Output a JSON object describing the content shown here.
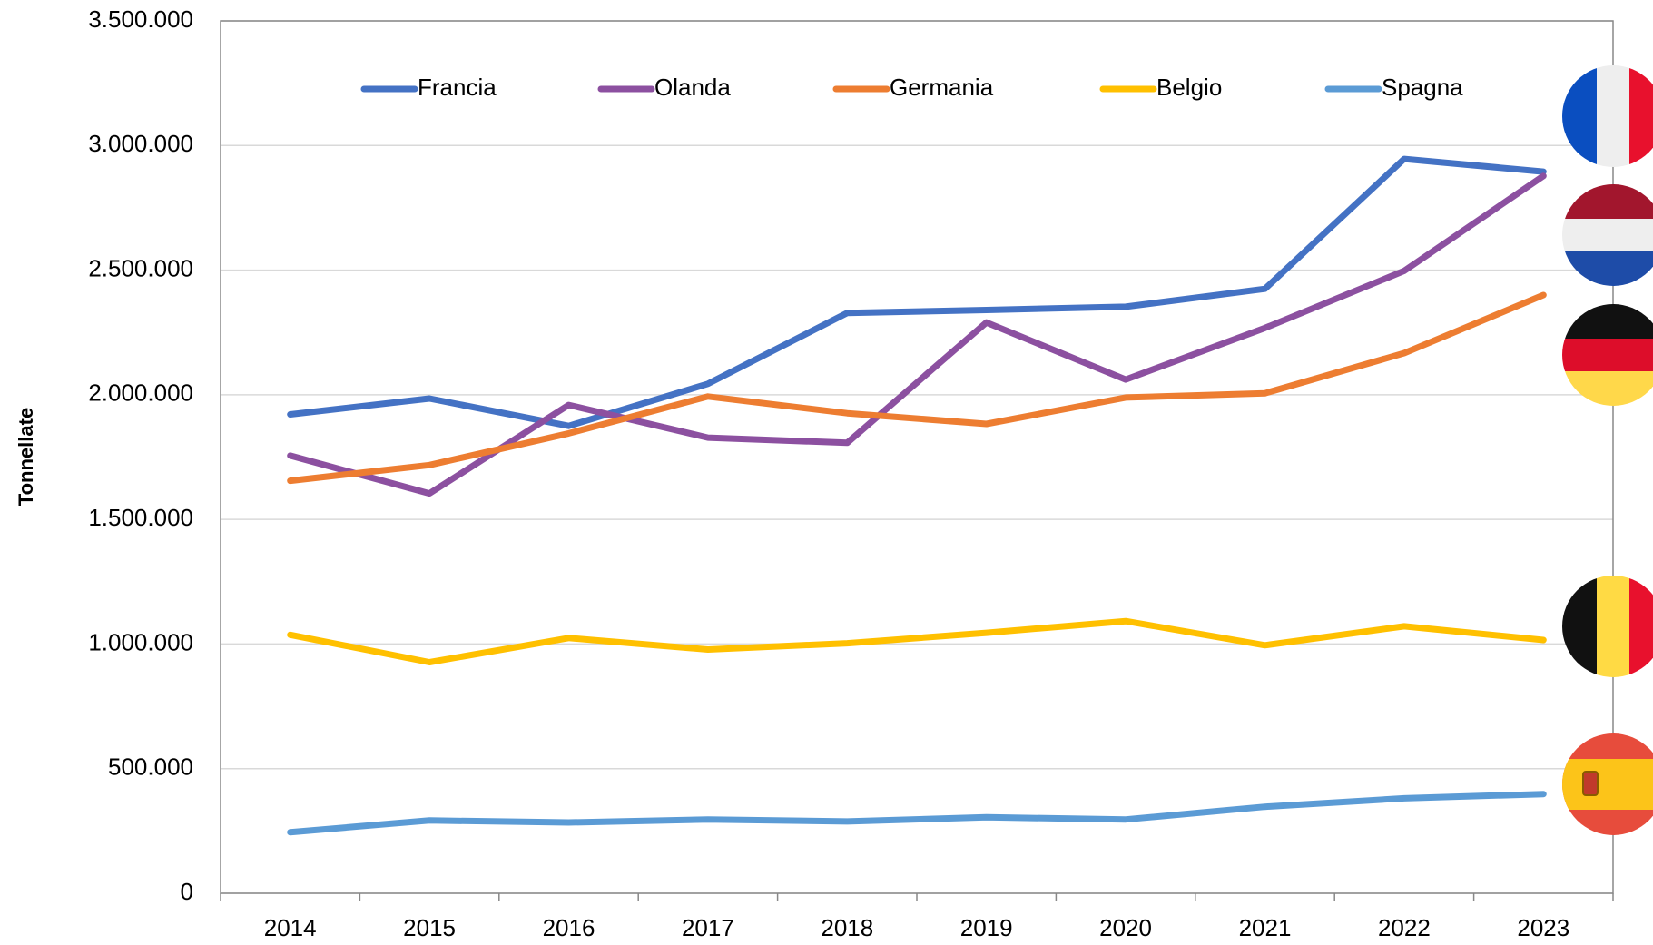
{
  "chart_data": {
    "type": "line",
    "ylabel": "Tonnellate",
    "categories": [
      "2014",
      "2015",
      "2016",
      "2017",
      "2018",
      "2019",
      "2020",
      "2021",
      "2022",
      "2023"
    ],
    "series": [
      {
        "name": "Francia",
        "color": "#4472c4",
        "values": [
          1921000,
          1985000,
          1875000,
          2044000,
          2328000,
          2340000,
          2353000,
          2425000,
          2946000,
          2895000
        ]
      },
      {
        "name": "Olanda",
        "color": "#8c50a0",
        "values": [
          1756000,
          1604000,
          1959000,
          1828000,
          1807000,
          2290000,
          2061000,
          2268000,
          2497000,
          2878000
        ]
      },
      {
        "name": "Germania",
        "color": "#ed7d31",
        "values": [
          1655000,
          1718000,
          1845000,
          1993000,
          1926000,
          1883000,
          1989000,
          2006000,
          2167000,
          2400000
        ]
      },
      {
        "name": "Belgio",
        "color": "#ffc000",
        "values": [
          1037000,
          927000,
          1024000,
          978000,
          1003000,
          1045000,
          1092000,
          995000,
          1071000,
          1016000
        ]
      },
      {
        "name": "Spagna",
        "color": "#5b9bd5",
        "values": [
          245000,
          292000,
          284000,
          296000,
          288000,
          305000,
          296000,
          347000,
          381000,
          398000
        ]
      }
    ],
    "ylim": [
      0,
      3500000
    ],
    "yticks": [
      0,
      {
        "value": 500000,
        "label": "500.000"
      },
      {
        "value": 1000000,
        "label": "1.000.000"
      },
      {
        "value": 1500000,
        "label": "1.500.000"
      },
      {
        "value": 2000000,
        "label": "2.000.000"
      },
      {
        "value": 2500000,
        "label": "2.500.000"
      },
      {
        "value": 3000000,
        "label": "3.000.000"
      },
      {
        "value": 3500000,
        "label": "3.500.000"
      }
    ],
    "grid": true,
    "legend": "top"
  }
}
